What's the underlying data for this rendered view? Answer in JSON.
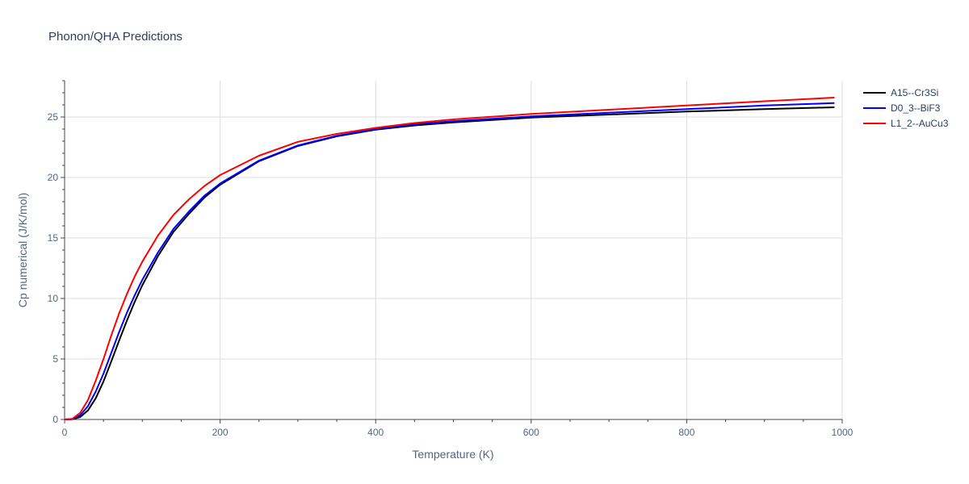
{
  "chart_data": {
    "type": "line",
    "title": "Phonon/QHA Predictions",
    "xlabel": "Temperature (K)",
    "ylabel": "Cp numerical (J/K/mol)",
    "xlim": [
      0,
      1000
    ],
    "ylim": [
      0,
      28
    ],
    "xticks": [
      0,
      200,
      400,
      600,
      800,
      1000
    ],
    "yticks": [
      0,
      5,
      10,
      15,
      20,
      25
    ],
    "grid": true,
    "legend_position": "top-right",
    "x": [
      0,
      10,
      20,
      30,
      40,
      50,
      60,
      70,
      80,
      90,
      100,
      120,
      140,
      160,
      180,
      200,
      250,
      300,
      350,
      400,
      450,
      500,
      600,
      700,
      800,
      900,
      990
    ],
    "series": [
      {
        "name": "A15--Cr3Si",
        "color": "#000000",
        "values": [
          0,
          0.02,
          0.2,
          0.75,
          1.75,
          3.15,
          4.8,
          6.5,
          8.15,
          9.7,
          11.1,
          13.5,
          15.5,
          17.0,
          18.35,
          19.4,
          21.35,
          22.6,
          23.4,
          23.95,
          24.3,
          24.55,
          24.95,
          25.2,
          25.45,
          25.65,
          25.8
        ]
      },
      {
        "name": "D0_3--BiF3",
        "color": "#0000ff",
        "values": [
          0,
          0.03,
          0.35,
          1.1,
          2.3,
          3.8,
          5.5,
          7.2,
          8.8,
          10.25,
          11.55,
          13.8,
          15.75,
          17.2,
          18.5,
          19.5,
          21.4,
          22.65,
          23.45,
          24.0,
          24.4,
          24.65,
          25.05,
          25.35,
          25.65,
          25.95,
          26.15
        ]
      },
      {
        "name": "L1_2--AuCu3",
        "color": "#ff0000",
        "values": [
          0,
          0.05,
          0.55,
          1.6,
          3.2,
          5.0,
          6.95,
          8.75,
          10.35,
          11.8,
          13.05,
          15.2,
          16.9,
          18.2,
          19.3,
          20.2,
          21.8,
          22.95,
          23.6,
          24.1,
          24.5,
          24.8,
          25.25,
          25.6,
          25.95,
          26.3,
          26.6
        ]
      }
    ]
  }
}
